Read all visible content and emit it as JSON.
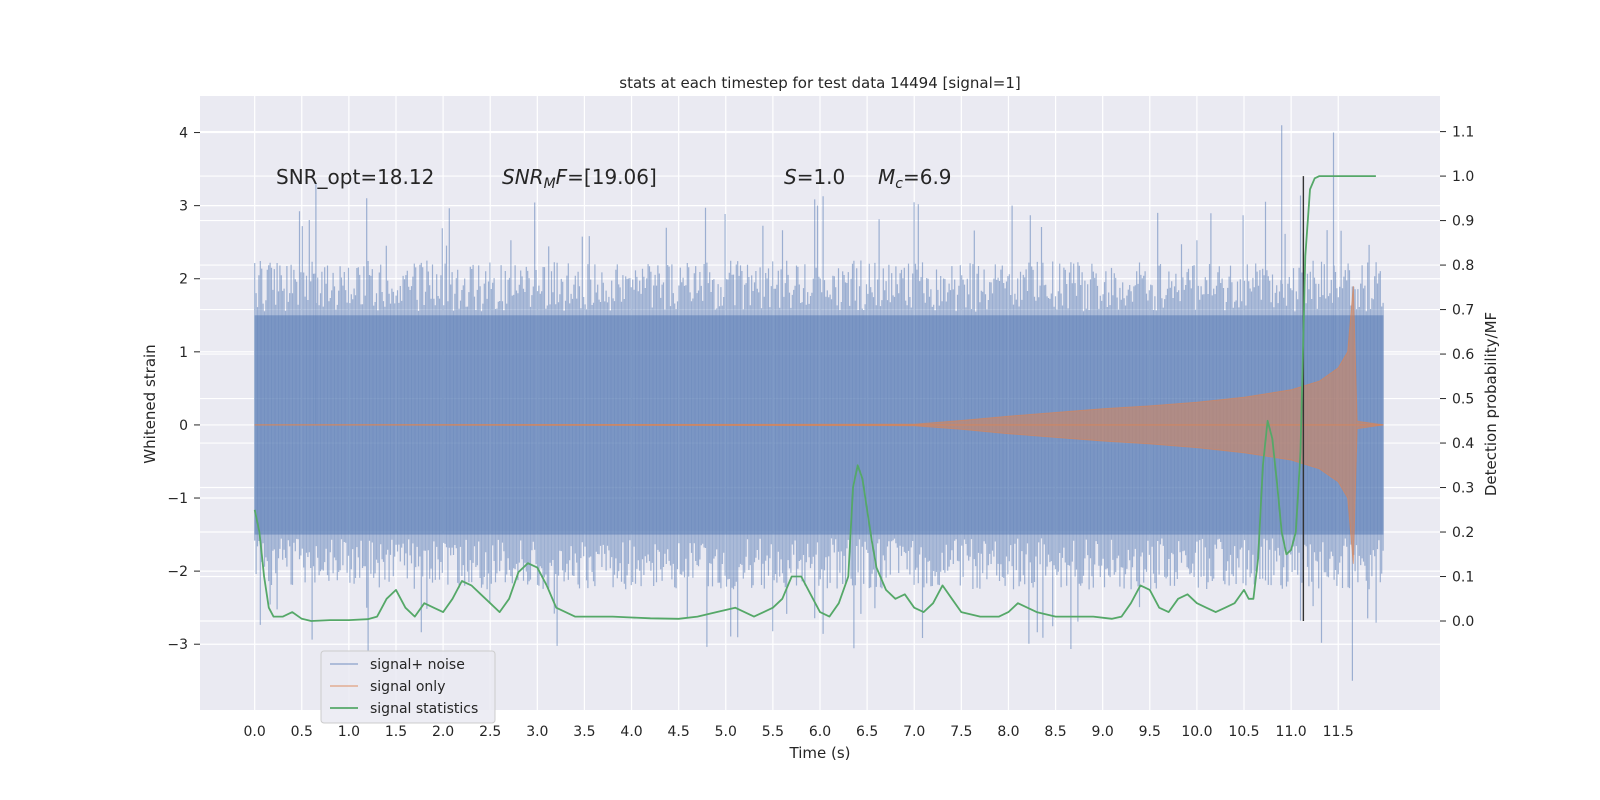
{
  "chart_data": {
    "type": "line",
    "title": "stats at each timestep for test data 14494 [signal=1]",
    "xlabel": "Time (s)",
    "ylabel": "Whitened strain",
    "ylabel_right": "Detection probability/MF",
    "xlim": [
      -0.58,
      12.58
    ],
    "ylim": [
      -3.9,
      4.5
    ],
    "ylim_right": [
      -0.2,
      1.18
    ],
    "x_ticks": [
      "0.0",
      "0.5",
      "1.0",
      "1.5",
      "2.0",
      "2.5",
      "3.0",
      "3.5",
      "4.0",
      "4.5",
      "5.0",
      "5.5",
      "6.0",
      "6.5",
      "7.0",
      "7.5",
      "8.0",
      "8.5",
      "9.0",
      "9.5",
      "10.0",
      "10.5",
      "11.0",
      "11.5"
    ],
    "y_ticks": [
      "4",
      "3",
      "2",
      "1",
      "0",
      "−1",
      "−2",
      "−3"
    ],
    "y_ticks_right": [
      "1.1",
      "1.0",
      "0.9",
      "0.8",
      "0.7",
      "0.6",
      "0.5",
      "0.4",
      "0.3",
      "0.2",
      "0.1",
      "0.0"
    ],
    "grid": true,
    "legend_position": "lower-left",
    "annotations": {
      "snr_opt": "SNR_opt=18.12",
      "snr_mf_sym": "SNR",
      "snr_mf_sub": "M",
      "snr_mf_f": "F",
      "snr_mf_val": "=[19.06]",
      "s_sym": "S",
      "s_val": "=1.0",
      "mc_sym": "M",
      "mc_sub": "c",
      "mc_val": "=6.9"
    },
    "marker_time": 11.13,
    "series": [
      {
        "name": "signal+ noise",
        "color": "#4c72b0",
        "description_values": "dense noise, envelope approx ±2.0 with spikes to ±3.5",
        "noise_band": {
          "x": [
            0.0,
            11.98
          ],
          "core": 1.5,
          "peak": 2.2,
          "spikes": [
            [
              0.65,
              3.3
            ],
            [
              10.9,
              4.1
            ],
            [
              11.45,
              4.0
            ],
            [
              11.65,
              -3.5
            ]
          ]
        }
      },
      {
        "name": "signal only",
        "color": "#dd8452",
        "envelope": {
          "x": [
            0.0,
            7.0,
            7.5,
            8.0,
            8.5,
            9.0,
            9.5,
            10.0,
            10.5,
            11.0,
            11.3,
            11.5,
            11.6,
            11.66,
            11.7,
            11.98
          ],
          "amp": [
            0.0,
            0.01,
            0.06,
            0.12,
            0.17,
            0.22,
            0.26,
            0.31,
            0.38,
            0.48,
            0.6,
            0.78,
            1.0,
            1.9,
            0.05,
            0.0
          ]
        }
      },
      {
        "name": "signal statistics",
        "color": "#55a868",
        "x": [
          0.0,
          0.05,
          0.1,
          0.15,
          0.2,
          0.3,
          0.4,
          0.5,
          0.6,
          0.8,
          1.0,
          1.2,
          1.3,
          1.4,
          1.5,
          1.6,
          1.7,
          1.8,
          1.9,
          2.0,
          2.1,
          2.2,
          2.3,
          2.4,
          2.5,
          2.6,
          2.7,
          2.8,
          2.9,
          3.0,
          3.1,
          3.2,
          3.4,
          3.6,
          3.8,
          4.0,
          4.2,
          4.5,
          4.7,
          4.9,
          5.1,
          5.3,
          5.5,
          5.6,
          5.7,
          5.8,
          5.9,
          6.0,
          6.1,
          6.2,
          6.3,
          6.35,
          6.4,
          6.45,
          6.5,
          6.55,
          6.6,
          6.7,
          6.8,
          6.9,
          7.0,
          7.1,
          7.2,
          7.3,
          7.4,
          7.5,
          7.7,
          7.9,
          8.0,
          8.1,
          8.3,
          8.5,
          8.7,
          8.9,
          9.1,
          9.2,
          9.3,
          9.4,
          9.5,
          9.6,
          9.7,
          9.8,
          9.9,
          10.0,
          10.1,
          10.2,
          10.3,
          10.4,
          10.5,
          10.55,
          10.6,
          10.65,
          10.7,
          10.75,
          10.8,
          10.85,
          10.9,
          10.95,
          11.0,
          11.05,
          11.1,
          11.15,
          11.2,
          11.25,
          11.3,
          11.35,
          11.4,
          11.5,
          11.6,
          11.7,
          11.8,
          11.9
        ],
        "values": [
          0.25,
          0.2,
          0.1,
          0.03,
          0.01,
          0.01,
          0.02,
          0.005,
          0.0,
          0.002,
          0.002,
          0.004,
          0.01,
          0.05,
          0.07,
          0.03,
          0.01,
          0.04,
          0.03,
          0.02,
          0.05,
          0.09,
          0.08,
          0.06,
          0.04,
          0.02,
          0.05,
          0.11,
          0.13,
          0.12,
          0.08,
          0.03,
          0.01,
          0.01,
          0.01,
          0.008,
          0.006,
          0.005,
          0.01,
          0.02,
          0.03,
          0.01,
          0.03,
          0.05,
          0.1,
          0.1,
          0.06,
          0.02,
          0.01,
          0.04,
          0.1,
          0.3,
          0.35,
          0.32,
          0.25,
          0.18,
          0.12,
          0.07,
          0.05,
          0.06,
          0.03,
          0.02,
          0.04,
          0.08,
          0.05,
          0.02,
          0.01,
          0.01,
          0.02,
          0.04,
          0.02,
          0.01,
          0.01,
          0.01,
          0.005,
          0.01,
          0.04,
          0.08,
          0.07,
          0.03,
          0.02,
          0.05,
          0.06,
          0.04,
          0.03,
          0.02,
          0.03,
          0.04,
          0.07,
          0.05,
          0.05,
          0.14,
          0.35,
          0.45,
          0.41,
          0.31,
          0.2,
          0.15,
          0.16,
          0.2,
          0.38,
          0.82,
          0.97,
          0.995,
          1.0,
          1.0,
          1.0,
          1.0,
          1.0,
          1.0,
          1.0,
          1.0
        ]
      }
    ]
  }
}
